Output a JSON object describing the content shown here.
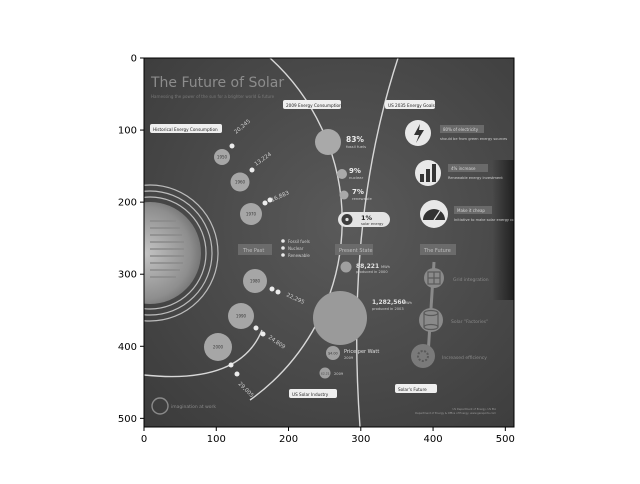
{
  "chart_data": {
    "type": "image",
    "xlim": [
      0,
      512
    ],
    "ylim": [
      512,
      0
    ],
    "xticks": [
      0,
      100,
      200,
      300,
      400,
      500
    ],
    "yticks": [
      0,
      100,
      200,
      300,
      400,
      500
    ],
    "colormap": "gray"
  },
  "image": {
    "title": "The Future of Solar",
    "subtitle": "Harnessing the power of the sun for a brighter world & future",
    "sections": {
      "historical": "Historical Energy Consumption",
      "consumption_2009": "2009 Energy Consumption",
      "goals_2035": "US 2035 Energy Goals",
      "the_past": "The Past",
      "present_state": "Present State",
      "the_future": "The Future",
      "us_solar_industry": "US Solar Industry",
      "solars_future": "Solar's Future"
    },
    "years": [
      {
        "year": "1950",
        "value": "20,245"
      },
      {
        "year": "1960",
        "value": "13,224"
      },
      {
        "year": "1970",
        "value": "16,883"
      },
      {
        "year": "1980",
        "value": "22,295"
      },
      {
        "year": "1990",
        "value": "24,809"
      },
      {
        "year": "2000",
        "value": "29,005"
      }
    ],
    "legend": [
      "Fossil fuels",
      "Nuclear",
      "Renewable"
    ],
    "consumption": [
      {
        "pct": "83%",
        "label": "fossil fuels"
      },
      {
        "pct": "9%",
        "label": "nuclear"
      },
      {
        "pct": "7%",
        "label": "renewable"
      },
      {
        "pct": "1%",
        "label": "solar energy"
      }
    ],
    "industry": [
      {
        "value": "88,221",
        "unit": "MWh",
        "note": "produced in 2000"
      },
      {
        "value": "1,282,560",
        "unit": "MWh",
        "note": "produced in 2003"
      }
    ],
    "price_label": "Price per Watt",
    "prices": [
      {
        "value": "$4.00",
        "year": "2009"
      },
      {
        "value": "$2.21",
        "year": "2009"
      }
    ],
    "goals": [
      {
        "badge": "80% of electricity",
        "text": "should be from green energy sources"
      },
      {
        "badge": "4% increase",
        "text": "Renewable energy investment"
      },
      {
        "badge": "Make it cheap",
        "text": "Initiative to make solar energy cost competitive"
      }
    ],
    "future_items": [
      "Grid integration",
      "Solar \"Factories\"",
      "Increased efficiency"
    ],
    "footer_brand": "imagination at work",
    "footer_sources": [
      "US Department of Energy, US EIA",
      "Department of Energy & Office of Energy, www.gereports.com"
    ]
  }
}
